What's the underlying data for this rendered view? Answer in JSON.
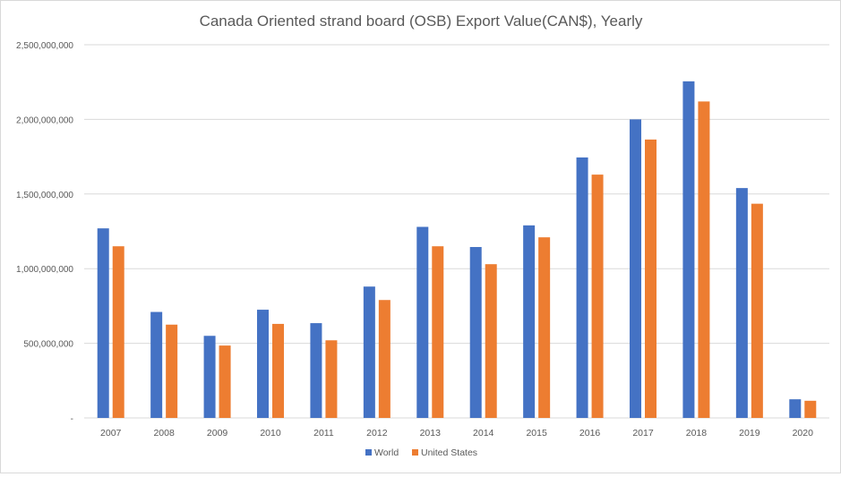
{
  "chart_data": {
    "type": "bar",
    "title": "Canada Oriented strand board (OSB) Export Value(CAN$), Yearly",
    "xlabel": "",
    "ylabel": "",
    "ylim": [
      0,
      2500000000
    ],
    "yticks": [
      0,
      500000000,
      1000000000,
      1500000000,
      2000000000,
      2500000000
    ],
    "ytick_labels": [
      "-",
      "500,000,000",
      "1,000,000,000",
      "1,500,000,000",
      "2,000,000,000",
      "2,500,000,000"
    ],
    "grid": true,
    "legend_position": "bottom",
    "categories": [
      "2007",
      "2008",
      "2009",
      "2010",
      "2011",
      "2012",
      "2013",
      "2014",
      "2015",
      "2016",
      "2017",
      "2018",
      "2019",
      "2020"
    ],
    "series": [
      {
        "name": "World",
        "color": "#4472C4",
        "values": [
          1270000000,
          710000000,
          550000000,
          725000000,
          635000000,
          880000000,
          1280000000,
          1145000000,
          1290000000,
          1745000000,
          2000000000,
          2255000000,
          1540000000,
          125000000
        ]
      },
      {
        "name": "United States",
        "color": "#ED7D31",
        "values": [
          1150000000,
          625000000,
          485000000,
          630000000,
          520000000,
          790000000,
          1150000000,
          1030000000,
          1210000000,
          1630000000,
          1865000000,
          2120000000,
          1435000000,
          115000000
        ]
      }
    ]
  }
}
